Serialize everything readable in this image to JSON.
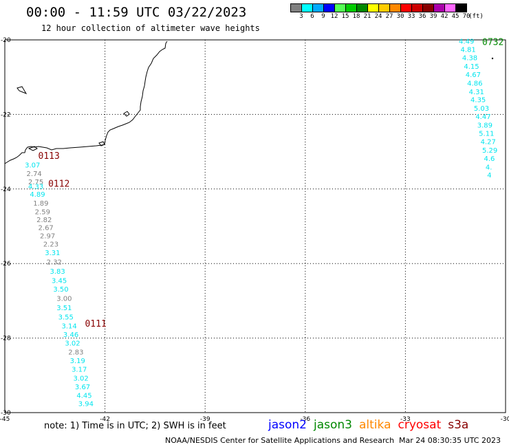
{
  "title": "00:00 - 11:59 UTC 03/22/2023",
  "subtitle": "12 hour collection of altimeter wave heights",
  "legend": {
    "unit": "(ft)",
    "swatches": [
      {
        "color": "#808080",
        "label": "3"
      },
      {
        "color": "#00ffff",
        "label": "6"
      },
      {
        "color": "#00aaff",
        "label": "9"
      },
      {
        "color": "#0000ff",
        "label": "12"
      },
      {
        "color": "#55ff55",
        "label": "15"
      },
      {
        "color": "#00cc00",
        "label": "18"
      },
      {
        "color": "#008800",
        "label": "21"
      },
      {
        "color": "#ffff00",
        "label": "24"
      },
      {
        "color": "#ffcc00",
        "label": "27"
      },
      {
        "color": "#ff8800",
        "label": "30"
      },
      {
        "color": "#ff0000",
        "label": "33"
      },
      {
        "color": "#cc0000",
        "label": "36"
      },
      {
        "color": "#880000",
        "label": "39"
      },
      {
        "color": "#aa00aa",
        "label": "42"
      },
      {
        "color": "#ff66ff",
        "label": "45"
      },
      {
        "color": "#000000",
        "label": "70"
      }
    ]
  },
  "axes": {
    "lon_ticks": [
      "-45",
      "-42",
      "-39",
      "-36",
      "-33",
      "-30"
    ],
    "lat_ticks": [
      "-20",
      "-22",
      "-24",
      "-26",
      "-28",
      "-30"
    ]
  },
  "colors": {
    "cyan": "#00e5ee",
    "gray": "#808080",
    "pass": "#880000",
    "pass_green": "#008800"
  },
  "pass_labels": [
    {
      "text": "0113",
      "lon": -44.0,
      "lat": -23.1,
      "color": "pass"
    },
    {
      "text": "0112",
      "lon": -43.7,
      "lat": -23.85,
      "color": "pass"
    },
    {
      "text": "0111",
      "lon": -42.6,
      "lat": -27.6,
      "color": "pass"
    },
    {
      "text": "0732",
      "lon": -30.7,
      "lat": -20.05,
      "color": "pass_green"
    }
  ],
  "swh_track_west": [
    {
      "v": "3.07",
      "lon": -44.4,
      "lat": -23.35,
      "c": "cyan"
    },
    {
      "v": "2.74",
      "lon": -44.35,
      "lat": -23.58,
      "c": "gray"
    },
    {
      "v": "2.75",
      "lon": -44.3,
      "lat": -23.8,
      "c": "gray"
    },
    {
      "v": "4.33",
      "lon": -44.3,
      "lat": -23.92,
      "c": "cyan"
    },
    {
      "v": "4.89",
      "lon": -44.25,
      "lat": -24.13,
      "c": "cyan"
    },
    {
      "v": "1.89",
      "lon": -44.15,
      "lat": -24.37,
      "c": "gray"
    },
    {
      "v": "2.59",
      "lon": -44.1,
      "lat": -24.6,
      "c": "gray"
    },
    {
      "v": "2.82",
      "lon": -44.05,
      "lat": -24.82,
      "c": "gray"
    },
    {
      "v": "2.67",
      "lon": -44.0,
      "lat": -25.03,
      "c": "gray"
    },
    {
      "v": "2.97",
      "lon": -43.95,
      "lat": -25.25,
      "c": "gray"
    },
    {
      "v": "2.23",
      "lon": -43.85,
      "lat": -25.47,
      "c": "gray"
    },
    {
      "v": "3.31",
      "lon": -43.8,
      "lat": -25.7,
      "c": "cyan"
    },
    {
      "v": "2.32",
      "lon": -43.75,
      "lat": -25.95,
      "c": "gray"
    },
    {
      "v": "3.83",
      "lon": -43.65,
      "lat": -26.2,
      "c": "cyan"
    },
    {
      "v": "3.45",
      "lon": -43.6,
      "lat": -26.45,
      "c": "cyan"
    },
    {
      "v": "3.50",
      "lon": -43.55,
      "lat": -26.68,
      "c": "cyan"
    },
    {
      "v": "3.00",
      "lon": -43.45,
      "lat": -26.93,
      "c": "gray"
    },
    {
      "v": "3.51",
      "lon": -43.45,
      "lat": -27.18,
      "c": "cyan"
    },
    {
      "v": "3.55",
      "lon": -43.4,
      "lat": -27.43,
      "c": "cyan"
    },
    {
      "v": "3.14",
      "lon": -43.3,
      "lat": -27.67,
      "c": "cyan"
    },
    {
      "v": "3.46",
      "lon": -43.25,
      "lat": -27.9,
      "c": "cyan"
    },
    {
      "v": "3.02",
      "lon": -43.2,
      "lat": -28.13,
      "c": "cyan"
    },
    {
      "v": "2.83",
      "lon": -43.1,
      "lat": -28.37,
      "c": "gray"
    },
    {
      "v": "3.19",
      "lon": -43.05,
      "lat": -28.6,
      "c": "cyan"
    },
    {
      "v": "3.17",
      "lon": -43.0,
      "lat": -28.83,
      "c": "cyan"
    },
    {
      "v": "3.02",
      "lon": -42.95,
      "lat": -29.07,
      "c": "cyan"
    },
    {
      "v": "3.67",
      "lon": -42.9,
      "lat": -29.3,
      "c": "cyan"
    },
    {
      "v": "4.45",
      "lon": -42.85,
      "lat": -29.53,
      "c": "cyan"
    },
    {
      "v": "3.94",
      "lon": -42.8,
      "lat": -29.75,
      "c": "cyan"
    }
  ],
  "swh_track_east": [
    {
      "v": "4.49",
      "lon": -31.4,
      "lat": -20.03,
      "c": "cyan"
    },
    {
      "v": "4.81",
      "lon": -31.35,
      "lat": -20.25,
      "c": "cyan"
    },
    {
      "v": "4.38",
      "lon": -31.3,
      "lat": -20.47,
      "c": "cyan"
    },
    {
      "v": "4.15",
      "lon": -31.25,
      "lat": -20.7,
      "c": "cyan"
    },
    {
      "v": "4.67",
      "lon": -31.2,
      "lat": -20.92,
      "c": "cyan"
    },
    {
      "v": "4.86",
      "lon": -31.15,
      "lat": -21.15,
      "c": "cyan"
    },
    {
      "v": "4.31",
      "lon": -31.1,
      "lat": -21.38,
      "c": "cyan"
    },
    {
      "v": "4.35",
      "lon": -31.05,
      "lat": -21.6,
      "c": "cyan"
    },
    {
      "v": "5.03",
      "lon": -30.95,
      "lat": -21.83,
      "c": "cyan"
    },
    {
      "v": "4.47",
      "lon": -30.9,
      "lat": -22.05,
      "c": "cyan"
    },
    {
      "v": "3.89",
      "lon": -30.85,
      "lat": -22.28,
      "c": "cyan"
    },
    {
      "v": "5.11",
      "lon": -30.8,
      "lat": -22.5,
      "c": "cyan"
    },
    {
      "v": "4.27",
      "lon": -30.75,
      "lat": -22.72,
      "c": "cyan"
    },
    {
      "v": "5.29",
      "lon": -30.7,
      "lat": -22.95,
      "c": "cyan"
    },
    {
      "v": "4.6",
      "lon": -30.65,
      "lat": -23.17,
      "c": "cyan"
    },
    {
      "v": "4.",
      "lon": -30.6,
      "lat": -23.4,
      "c": "cyan"
    },
    {
      "v": "4",
      "lon": -30.55,
      "lat": -23.62,
      "c": "cyan"
    }
  ],
  "note": "note: 1) Time is in UTC; 2) SWH is in feet",
  "satellites": [
    {
      "name": "jason2",
      "color": "#0000ff"
    },
    {
      "name": "jason3",
      "color": "#008800"
    },
    {
      "name": "altika",
      "color": "#ff8800"
    },
    {
      "name": "cryosat",
      "color": "#ff0000"
    },
    {
      "name": "s3a",
      "color": "#880000"
    }
  ],
  "footer": {
    "center": "NOAA/NESDIS Center for Satellite Applications and Research",
    "timestamp": "Mar 24 08:30:35 UTC 2023"
  }
}
